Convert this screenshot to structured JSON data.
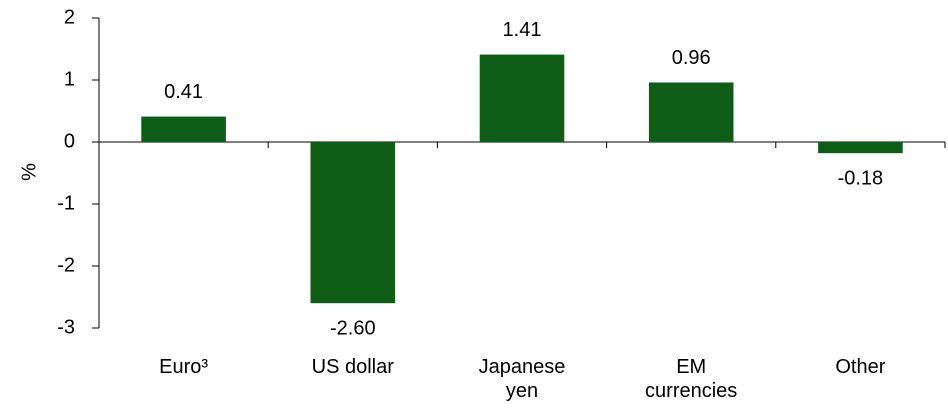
{
  "chart_data": {
    "type": "bar",
    "y_label": "%",
    "categories": [
      "Euro³",
      "US dollar",
      "Japanese yen",
      "EM currencies",
      "Other"
    ],
    "values": [
      0.41,
      -2.6,
      1.41,
      0.96,
      -0.18
    ],
    "value_labels": [
      "0.41",
      "-2.60",
      "1.41",
      "0.96",
      "-0.18"
    ],
    "color": "#0f5c17",
    "ylim": [
      -3,
      2
    ],
    "yticks": [
      -3,
      -2,
      -1,
      0,
      1,
      2
    ],
    "grid": false
  }
}
